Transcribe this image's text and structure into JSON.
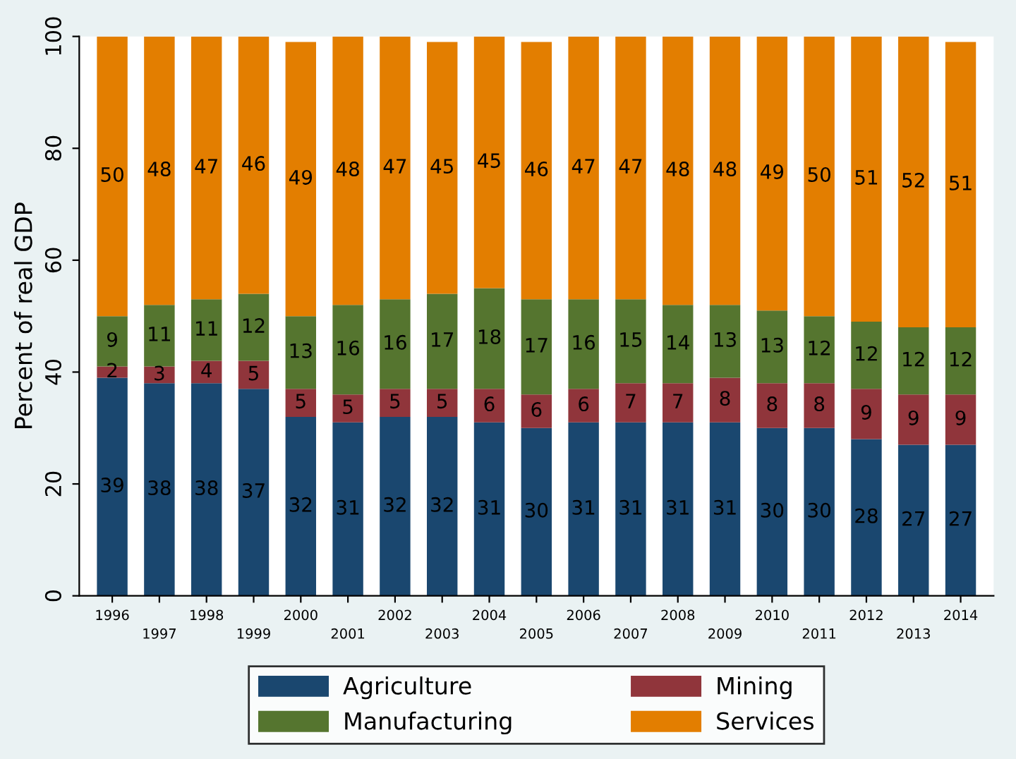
{
  "chart_data": {
    "type": "bar",
    "stacked": true,
    "ylabel": "Percent of real GDP",
    "categories": [
      "1996",
      "1997",
      "1998",
      "1999",
      "2000",
      "2001",
      "2002",
      "2003",
      "2004",
      "2005",
      "2006",
      "2007",
      "2008",
      "2009",
      "2010",
      "2011",
      "2012",
      "2013",
      "2014"
    ],
    "series": [
      {
        "name": "Agriculture",
        "color": "#1a476f",
        "values": [
          39,
          38,
          38,
          37,
          32,
          31,
          32,
          32,
          31,
          30,
          31,
          31,
          31,
          31,
          30,
          30,
          28,
          27,
          27
        ]
      },
      {
        "name": "Mining",
        "color": "#90353b",
        "values": [
          2,
          3,
          4,
          5,
          5,
          5,
          5,
          5,
          6,
          6,
          6,
          7,
          7,
          8,
          8,
          8,
          9,
          9,
          9
        ]
      },
      {
        "name": "Manufacturing",
        "color": "#55752f",
        "values": [
          9,
          11,
          11,
          12,
          13,
          16,
          16,
          17,
          18,
          17,
          16,
          15,
          14,
          13,
          13,
          12,
          12,
          12,
          12
        ]
      },
      {
        "name": "Services",
        "color": "#e37e00",
        "values": [
          50,
          48,
          47,
          46,
          49,
          48,
          47,
          45,
          45,
          46,
          47,
          47,
          48,
          48,
          49,
          50,
          51,
          52,
          51
        ]
      }
    ],
    "ylim": [
      0,
      100
    ],
    "yticks": [
      0,
      20,
      40,
      60,
      80,
      100
    ],
    "grid": false,
    "legend": "bottom",
    "data_labels": true
  }
}
